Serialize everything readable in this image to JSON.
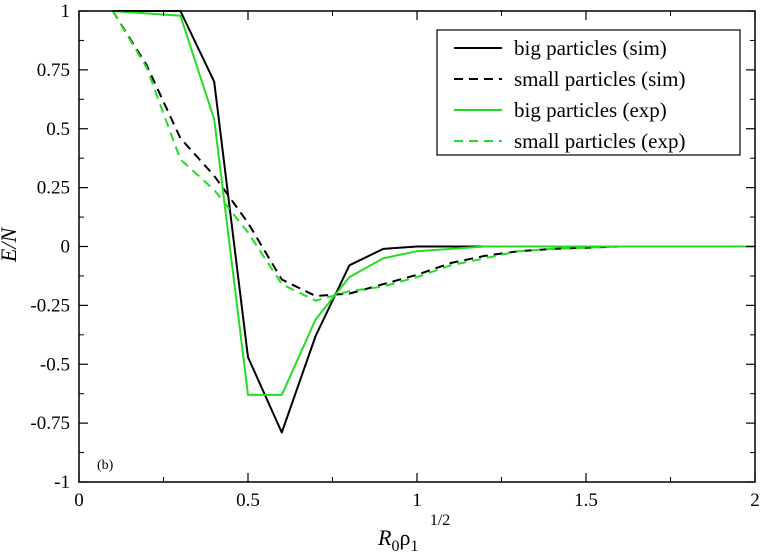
{
  "chart_data": {
    "type": "line",
    "xlabel_main": "R",
    "xlabel_sub0": "0",
    "xlabel_rho": "ρ",
    "xlabel_sub1": "1",
    "xlabel_sup": "1/2",
    "ylabel": "E/N",
    "panel_label": "(b)",
    "xlim": [
      0,
      2
    ],
    "ylim": [
      -1,
      1
    ],
    "x_ticks": [
      0,
      0.5,
      1,
      1.5,
      2
    ],
    "x_tick_labels": [
      "0",
      "0.5",
      "1",
      "1.5",
      "2"
    ],
    "y_ticks": [
      -1,
      -0.75,
      -0.5,
      -0.25,
      0,
      0.25,
      0.5,
      0.75,
      1
    ],
    "y_tick_labels": [
      "-1",
      "-0.75",
      "-0.5",
      "-0.25",
      "0",
      "0.25",
      "0.5",
      "0.75",
      "1"
    ],
    "legend_position": "top-right",
    "series": [
      {
        "name": "big particles (sim)",
        "color": "#000000",
        "dash": "solid",
        "x": [
          0.1,
          0.2,
          0.3,
          0.4,
          0.5,
          0.6,
          0.7,
          0.8,
          0.9,
          1.0,
          1.1,
          1.2,
          1.3,
          1.4,
          1.5,
          1.6,
          1.7,
          1.8,
          1.9,
          2.0
        ],
        "y": [
          1.0,
          1.0,
          1.0,
          0.7,
          -0.47,
          -0.79,
          -0.38,
          -0.08,
          -0.01,
          0.0,
          0.0,
          0.0,
          0.0,
          0.0,
          0.0,
          0.0,
          0.0,
          0.0,
          0.0,
          0.0
        ]
      },
      {
        "name": "small particles (sim)",
        "color": "#000000",
        "dash": "dashed",
        "x": [
          0.1,
          0.2,
          0.3,
          0.4,
          0.5,
          0.6,
          0.7,
          0.8,
          0.9,
          1.0,
          1.1,
          1.2,
          1.3,
          1.4,
          1.5,
          1.6,
          1.7,
          1.8,
          1.9,
          2.0
        ],
        "y": [
          1.0,
          0.77,
          0.46,
          0.3,
          0.1,
          -0.14,
          -0.21,
          -0.2,
          -0.16,
          -0.12,
          -0.07,
          -0.04,
          -0.02,
          -0.01,
          -0.005,
          0.0,
          0.0,
          0.0,
          0.0,
          0.0
        ]
      },
      {
        "name": "big particles (exp)",
        "color": "#22dd22",
        "dash": "solid",
        "x": [
          0.1,
          0.2,
          0.3,
          0.4,
          0.5,
          0.6,
          0.7,
          0.8,
          0.9,
          1.0,
          1.1,
          1.2,
          1.3,
          1.4,
          1.5,
          1.6,
          1.7,
          1.8,
          1.9,
          2.0
        ],
        "y": [
          1.0,
          0.99,
          0.98,
          0.54,
          -0.63,
          -0.63,
          -0.31,
          -0.13,
          -0.05,
          -0.02,
          -0.01,
          0.0,
          0.0,
          0.0,
          0.0,
          0.0,
          0.0,
          0.0,
          0.0,
          0.0
        ]
      },
      {
        "name": "small particles (exp)",
        "color": "#22dd22",
        "dash": "dashed",
        "x": [
          0.1,
          0.2,
          0.3,
          0.4,
          0.5,
          0.6,
          0.7,
          0.8,
          0.9,
          1.0,
          1.1,
          1.2,
          1.3,
          1.4,
          1.5,
          1.6,
          1.7,
          1.8,
          1.9,
          2.0
        ],
        "y": [
          1.0,
          0.76,
          0.37,
          0.24,
          0.06,
          -0.16,
          -0.23,
          -0.19,
          -0.17,
          -0.13,
          -0.08,
          -0.05,
          -0.02,
          -0.01,
          -0.005,
          0.0,
          0.0,
          0.0,
          0.0,
          0.0
        ]
      }
    ]
  }
}
